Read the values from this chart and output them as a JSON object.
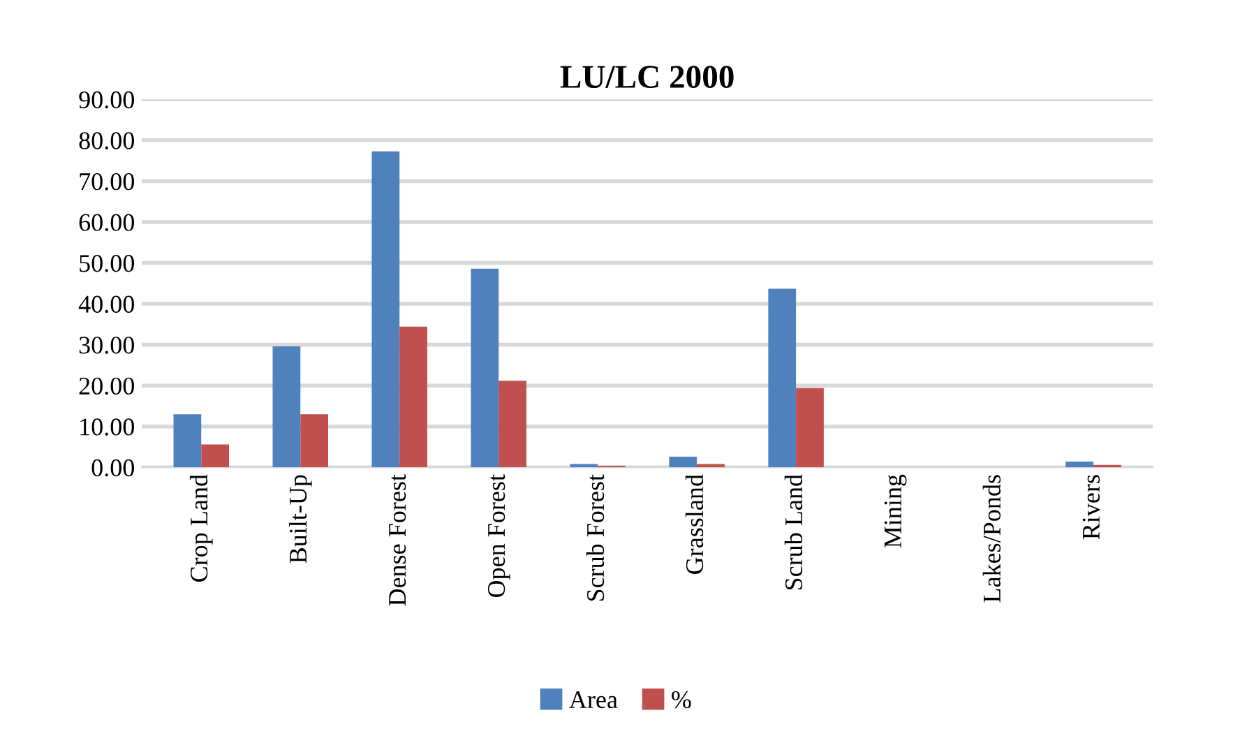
{
  "chart_data": {
    "type": "bar",
    "title": "LU/LC 2000",
    "categories": [
      "Crop Land",
      "Built-Up",
      "Dense Forest",
      "Open Forest",
      "Scrub Forest",
      "Grassland",
      "Scrub Land",
      "Mining",
      "Lakes/Ponds",
      "Rivers"
    ],
    "series": [
      {
        "name": "Area",
        "color": "#4f81bd",
        "values": [
          13.0,
          29.6,
          77.3,
          48.6,
          0.8,
          2.6,
          43.7,
          0,
          0,
          1.4
        ]
      },
      {
        "name": "%",
        "color": "#c0504d",
        "values": [
          5.6,
          13.0,
          34.4,
          21.2,
          0.4,
          0.8,
          19.4,
          0,
          0,
          0.6
        ]
      }
    ],
    "ylim": [
      0,
      90
    ],
    "yticks": [
      {
        "value": 0,
        "label": "0.00"
      },
      {
        "value": 10,
        "label": "10.00"
      },
      {
        "value": 20,
        "label": "20.00"
      },
      {
        "value": 30,
        "label": "30.00"
      },
      {
        "value": 40,
        "label": "40.00"
      },
      {
        "value": 50,
        "label": "50.00"
      },
      {
        "value": 60,
        "label": "60.00"
      },
      {
        "value": 70,
        "label": "70.00"
      },
      {
        "value": 80,
        "label": "80.00"
      },
      {
        "value": 90,
        "label": "90.00"
      }
    ],
    "grid": "y",
    "legend": "bottom"
  }
}
